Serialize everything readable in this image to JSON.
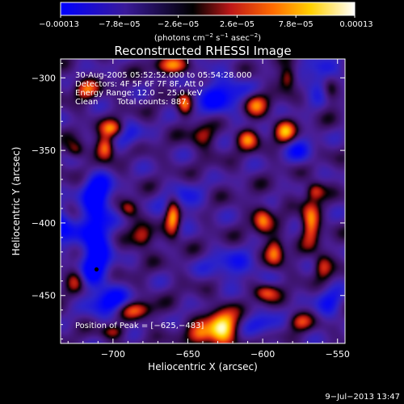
{
  "chart_data": {
    "type": "heatmap",
    "title": "Reconstructed RHESSI Image",
    "xlabel": "Heliocentric X (arcsec)",
    "ylabel": "Heliocentric Y (arcsec)",
    "xlim": [
      -735,
      -545
    ],
    "ylim": [
      -483,
      -287
    ],
    "x_ticks": [
      -700,
      -650,
      -600,
      -550
    ],
    "x_tick_labels": [
      "−700",
      "−650",
      "−600",
      "−550"
    ],
    "y_ticks": [
      -300,
      -350,
      -400,
      -450
    ],
    "y_tick_labels": [
      "−300",
      "−350",
      "−400",
      "−450"
    ],
    "grid": false,
    "colorbar": {
      "range": [
        -0.00013,
        0.00013
      ],
      "ticks": [
        -0.00013,
        -7.8e-05,
        -2.6e-05,
        2.6e-05,
        7.8e-05,
        0.00013
      ],
      "tick_labels": [
        "−0.00013",
        "−7.8e−05",
        "−2.6e−05",
        "2.6e−05",
        "7.8e−05",
        "0.00013"
      ],
      "unit_main": "(photons cm",
      "unit_exp1": "−2",
      "unit_mid": " s",
      "unit_exp2": "−1",
      "unit_end": " asec",
      "unit_exp3": "−2",
      "unit_close": ")",
      "colors": [
        "#0000ff",
        "#3a1a9a",
        "#000000",
        "#c01818",
        "#ff8c00",
        "#ffd000",
        "#ffffff"
      ]
    },
    "annotations": {
      "time_range": "30-Aug-2005 05:52:52.000 to 05:54:28.000",
      "detectors": "Detectors: 4F 5F 6F 7F 8F, Att 0",
      "energy_range": "Energy Range: 12.0 − 25.0 keV",
      "algorithm": "Clean",
      "total_counts": "Total counts: 887.",
      "peak_position": "Position of Peak = [−625,−483]"
    },
    "marker": {
      "label": "",
      "x": -711,
      "y": -432
    },
    "features": [
      {
        "kind": "neg",
        "x": -712,
        "y": -418,
        "sx": 10,
        "sy": 30,
        "amp": -1.0
      },
      {
        "kind": "neg",
        "x": -710,
        "y": -380,
        "sx": 10,
        "sy": 14,
        "amp": -0.8
      },
      {
        "kind": "neg",
        "x": -700,
        "y": -455,
        "sx": 12,
        "sy": 10,
        "amp": -0.7
      },
      {
        "kind": "neg",
        "x": -735,
        "y": -402,
        "sx": 8,
        "sy": 12,
        "amp": -0.8
      },
      {
        "kind": "neg",
        "x": -628,
        "y": -312,
        "sx": 18,
        "sy": 14,
        "amp": -0.7
      },
      {
        "kind": "neg",
        "x": -560,
        "y": -302,
        "sx": 14,
        "sy": 14,
        "amp": -0.6
      },
      {
        "kind": "neg",
        "x": -655,
        "y": -385,
        "sx": 14,
        "sy": 12,
        "amp": -0.5
      },
      {
        "kind": "neg",
        "x": -620,
        "y": -430,
        "sx": 18,
        "sy": 10,
        "amp": -0.55
      },
      {
        "kind": "neg",
        "x": -555,
        "y": -455,
        "sx": 10,
        "sy": 12,
        "amp": -0.5
      },
      {
        "kind": "neg",
        "x": -575,
        "y": -350,
        "sx": 10,
        "sy": 10,
        "amp": -0.5
      },
      {
        "kind": "neg",
        "x": -690,
        "y": -340,
        "sx": 10,
        "sy": 10,
        "amp": -0.45
      },
      {
        "kind": "neg",
        "x": -600,
        "y": -470,
        "sx": 12,
        "sy": 8,
        "amp": -0.5
      },
      {
        "kind": "pos",
        "x": -627,
        "y": -472,
        "sx": 10,
        "sy": 12,
        "amp": 1.35
      },
      {
        "kind": "pos",
        "x": -642,
        "y": -478,
        "sx": 8,
        "sy": 8,
        "amp": 0.8
      },
      {
        "kind": "pos",
        "x": -660,
        "y": -395,
        "sx": 5,
        "sy": 14,
        "amp": 1.05
      },
      {
        "kind": "pos",
        "x": -705,
        "y": -348,
        "sx": 6,
        "sy": 8,
        "amp": 1.0
      },
      {
        "kind": "pos",
        "x": -700,
        "y": -335,
        "sx": 8,
        "sy": 6,
        "amp": 0.8
      },
      {
        "kind": "pos",
        "x": -718,
        "y": -308,
        "sx": 8,
        "sy": 7,
        "amp": 0.7
      },
      {
        "kind": "pos",
        "x": -660,
        "y": -292,
        "sx": 12,
        "sy": 6,
        "amp": 0.75
      },
      {
        "kind": "pos",
        "x": -652,
        "y": -318,
        "sx": 5,
        "sy": 8,
        "amp": 0.85
      },
      {
        "kind": "pos",
        "x": -640,
        "y": -340,
        "sx": 8,
        "sy": 8,
        "amp": 0.6
      },
      {
        "kind": "pos",
        "x": -605,
        "y": -318,
        "sx": 8,
        "sy": 8,
        "amp": 0.85
      },
      {
        "kind": "pos",
        "x": -610,
        "y": -342,
        "sx": 7,
        "sy": 7,
        "amp": 0.8
      },
      {
        "kind": "pos",
        "x": -585,
        "y": -337,
        "sx": 7,
        "sy": 8,
        "amp": 0.9
      },
      {
        "kind": "pos",
        "x": -583,
        "y": -300,
        "sx": 6,
        "sy": 8,
        "amp": 0.75
      },
      {
        "kind": "pos",
        "x": -555,
        "y": -308,
        "sx": 6,
        "sy": 10,
        "amp": 0.7
      },
      {
        "kind": "pos",
        "x": -600,
        "y": -398,
        "sx": 6,
        "sy": 10,
        "amp": 0.8
      },
      {
        "kind": "pos",
        "x": -592,
        "y": -420,
        "sx": 6,
        "sy": 10,
        "amp": 0.85
      },
      {
        "kind": "pos",
        "x": -598,
        "y": -448,
        "sx": 8,
        "sy": 6,
        "amp": 0.7
      },
      {
        "kind": "pos",
        "x": -568,
        "y": -400,
        "sx": 6,
        "sy": 14,
        "amp": 0.95
      },
      {
        "kind": "pos",
        "x": -565,
        "y": -378,
        "sx": 6,
        "sy": 6,
        "amp": 0.7
      },
      {
        "kind": "pos",
        "x": -560,
        "y": -430,
        "sx": 6,
        "sy": 8,
        "amp": 0.7
      },
      {
        "kind": "pos",
        "x": -680,
        "y": -410,
        "sx": 7,
        "sy": 8,
        "amp": 0.7
      },
      {
        "kind": "pos",
        "x": -690,
        "y": -390,
        "sx": 6,
        "sy": 6,
        "amp": 0.6
      },
      {
        "kind": "pos",
        "x": -685,
        "y": -460,
        "sx": 12,
        "sy": 6,
        "amp": 0.75
      },
      {
        "kind": "pos",
        "x": -700,
        "y": -475,
        "sx": 8,
        "sy": 5,
        "amp": 0.55
      },
      {
        "kind": "pos",
        "x": -725,
        "y": -440,
        "sx": 6,
        "sy": 8,
        "amp": 0.6
      },
      {
        "kind": "pos",
        "x": -725,
        "y": -350,
        "sx": 6,
        "sy": 6,
        "amp": 0.55
      },
      {
        "kind": "pos",
        "x": -575,
        "y": -468,
        "sx": 8,
        "sy": 6,
        "amp": 0.6
      }
    ]
  },
  "timestamp": "9−Jul−2013 13:47"
}
